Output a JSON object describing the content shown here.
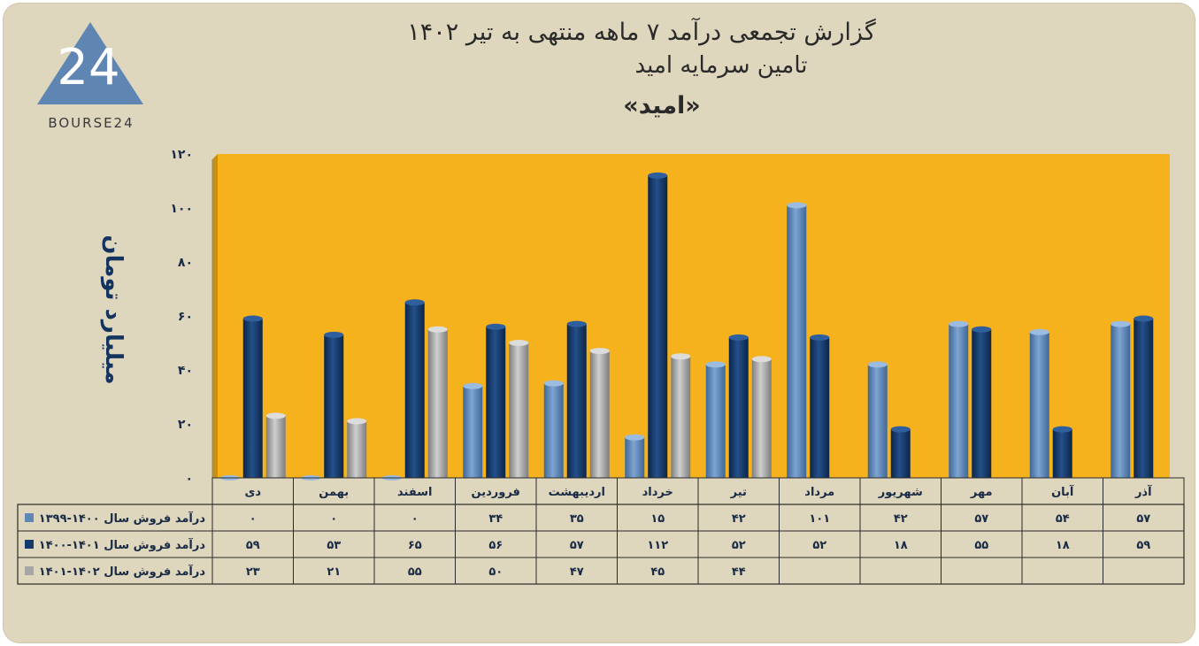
{
  "logo": {
    "text": "BOURSE24",
    "mark": "24"
  },
  "colors": {
    "plot_bg": "#f6b21d",
    "series1": "#5e87b8",
    "series2": "#143a6b",
    "series3": "#a6a6a6",
    "panel_bg": "#ded6bd",
    "text": "#1a2b46"
  },
  "chart_data": {
    "type": "bar",
    "title": "گزارش تجمعی درآمد ۷ ماهه منتهی به تیر ۱۴۰۲",
    "subtitle": "تامین سرمایه امید",
    "symbol": "«امید»",
    "ylabel": "میلیارد تومان",
    "xlabel": "",
    "ylim": [
      0,
      120
    ],
    "yticks": [
      0,
      20,
      40,
      60,
      80,
      100,
      120
    ],
    "ytick_labels": [
      "۰",
      "۲۰",
      "۴۰",
      "۶۰",
      "۸۰",
      "۱۰۰",
      "۱۲۰"
    ],
    "grid": false,
    "legend": "table-rows",
    "categories": [
      "دی",
      "بهمن",
      "اسفند",
      "فروردین",
      "اردیبهشت",
      "خرداد",
      "تیر",
      "مرداد",
      "شهریور",
      "مهر",
      "آبان",
      "آذر"
    ],
    "series": [
      {
        "name": "درآمد فروش سال ۱۴۰۰-۱۳۹۹",
        "color": "#5e87b8",
        "values": [
          0,
          0,
          0,
          34,
          35,
          15,
          42,
          101,
          42,
          57,
          54,
          57
        ],
        "labels": [
          "۰",
          "۰",
          "۰",
          "۳۴",
          "۳۵",
          "۱۵",
          "۴۲",
          "۱۰۱",
          "۴۲",
          "۵۷",
          "۵۴",
          "۵۷"
        ]
      },
      {
        "name": "درآمد فروش سال ۱۴۰۱-۱۴۰۰",
        "color": "#143a6b",
        "values": [
          59,
          53,
          65,
          56,
          57,
          112,
          52,
          52,
          18,
          55,
          18,
          59
        ],
        "labels": [
          "۵۹",
          "۵۳",
          "۶۵",
          "۵۶",
          "۵۷",
          "۱۱۲",
          "۵۲",
          "۵۲",
          "۱۸",
          "۵۵",
          "۱۸",
          "۵۹"
        ]
      },
      {
        "name": "درآمد فروش سال ۱۴۰۲-۱۴۰۱",
        "color": "#a6a6a6",
        "values": [
          23,
          21,
          55,
          50,
          47,
          45,
          44,
          null,
          null,
          null,
          null,
          null
        ],
        "labels": [
          "۲۳",
          "۲۱",
          "۵۵",
          "۵۰",
          "۴۷",
          "۴۵",
          "۴۴",
          "",
          "",
          "",
          "",
          ""
        ]
      }
    ]
  }
}
